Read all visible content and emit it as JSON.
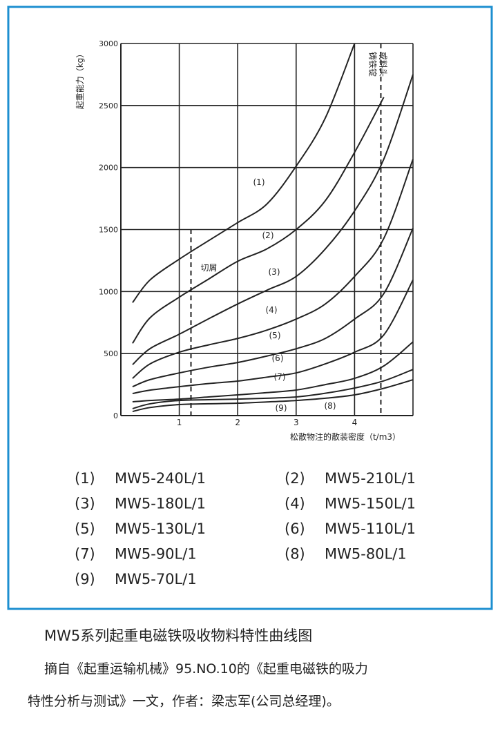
{
  "chart_data": {
    "type": "line",
    "y_label": "起重能力（kg）",
    "x_label": "松散物注的散装密度（t/m3）",
    "x": [
      0.2,
      0.5,
      1,
      1.5,
      2,
      2.5,
      3,
      3.5,
      4,
      4.5,
      5
    ],
    "xlim": [
      0,
      5
    ],
    "xticks": [
      1,
      2,
      3,
      4
    ],
    "ylim": [
      0,
      3000
    ],
    "yticks": [
      0,
      500,
      1000,
      1500,
      2000,
      2500,
      3000
    ],
    "grid": true,
    "color": "#222222",
    "series": [
      {
        "label": "(1)",
        "name": "MW5-240L/1",
        "values": [
          911,
          1094,
          1261,
          1410,
          1556,
          1706,
          2011,
          2400,
          3000,
          null,
          null
        ]
      },
      {
        "label": "(2)",
        "name": "MW5-210L/1",
        "values": [
          583,
          789,
          955,
          1100,
          1244,
          1344,
          1500,
          1733,
          2122,
          2567,
          null
        ]
      },
      {
        "label": "(3)",
        "name": "MW5-180L/1",
        "values": [
          411,
          540,
          656,
          780,
          900,
          1011,
          1122,
          1344,
          1650,
          2067,
          2750
        ]
      },
      {
        "label": "(4)",
        "name": "MW5-150L/1",
        "values": [
          300,
          417,
          511,
          570,
          622,
          689,
          778,
          900,
          1122,
          1428,
          2067
        ]
      },
      {
        "label": "(5)",
        "name": "MW5-130L/1",
        "values": [
          233,
          290,
          344,
          390,
          428,
          480,
          539,
          622,
          778,
          983,
          1511
        ]
      },
      {
        "label": "(6)",
        "name": "MW5-110L/1",
        "values": [
          178,
          205,
          233,
          258,
          278,
          310,
          344,
          417,
          511,
          650,
          1094
        ]
      },
      {
        "label": "(7)",
        "name": "MW5-90L/1",
        "values": [
          111,
          122,
          133,
          150,
          167,
          185,
          206,
          250,
          300,
          400,
          594
        ]
      },
      {
        "label": "(8)",
        "name": "MW5-80L/1",
        "values": [
          56,
          95,
          122,
          128,
          133,
          140,
          150,
          180,
          222,
          280,
          372
        ]
      },
      {
        "label": "(9)",
        "name": "MW5-70L/1",
        "values": [
          33,
          65,
          89,
          95,
          100,
          110,
          122,
          140,
          167,
          220,
          289
        ]
      }
    ],
    "reference_lines": [
      {
        "x": 1.2,
        "label_lines": [
          "切屑"
        ]
      },
      {
        "x": 4.45,
        "label_lines": [
          "铸铁锭",
          "或料头"
        ]
      }
    ]
  },
  "caption": {
    "title": "MW5系列起重电磁铁吸收物料特性曲线图",
    "lines": [
      "摘自《起重运输机械》95.NO.10的《起重电磁铁的吸力",
      "特性分析与测试》一文，作者：梁志军(公司总经理)。"
    ]
  }
}
